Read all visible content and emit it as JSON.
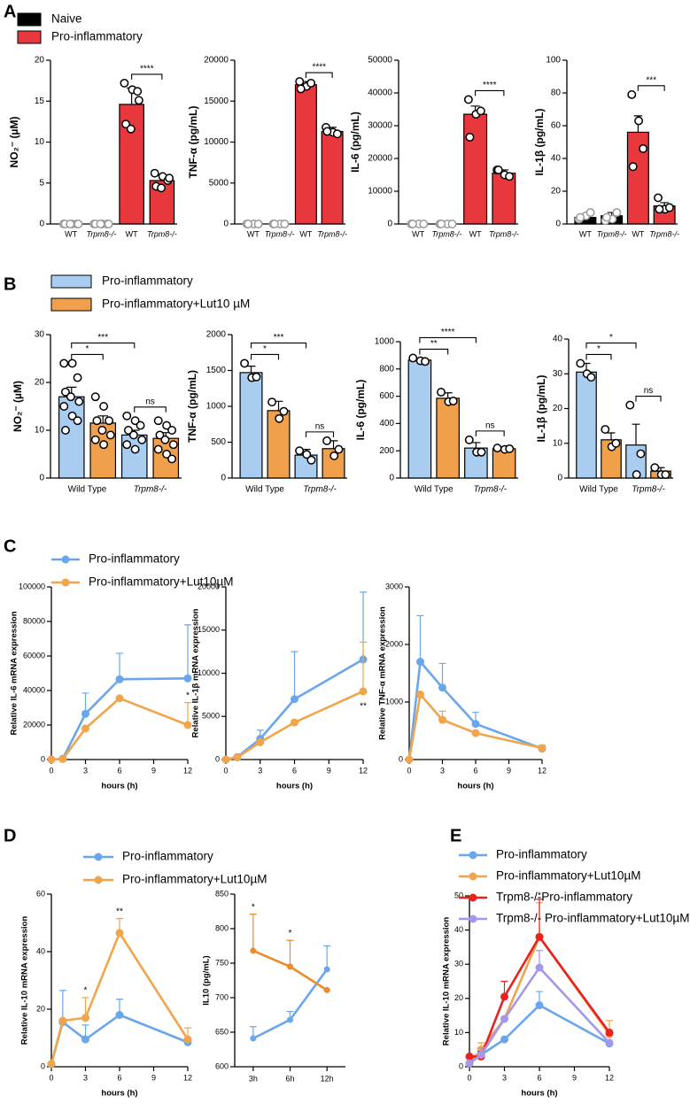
{
  "panel_labels": [
    "A",
    "B",
    "C",
    "D",
    "E"
  ],
  "chart_data": [
    {
      "type": "bar",
      "ylabel": "NO₂⁻ (µM)",
      "categories": [
        "WT",
        "Trpm8-/-"
      ],
      "series": [
        {
          "name": "Naive",
          "color": "#000000",
          "values": [
            0,
            0
          ],
          "errors": [
            0,
            0
          ],
          "points": [
            [
              0,
              0,
              0,
              0,
              0,
              0
            ],
            [
              0,
              0,
              0,
              0,
              0,
              0
            ]
          ]
        },
        {
          "name": "Pro-inflammatory",
          "color": "#e8383d",
          "values": [
            14.6,
            5.3
          ],
          "errors": [
            2.0,
            0.6
          ],
          "points": [
            [
              17.2,
              16.4,
              16.2,
              12.2,
              11.6,
              15.1
            ],
            [
              6.2,
              5.8,
              5.3,
              4.6,
              4.4,
              5.6
            ]
          ]
        }
      ],
      "ylim": [
        0,
        20
      ],
      "yticks": [
        0,
        5,
        10,
        15,
        20
      ],
      "annotations": [
        "****"
      ]
    },
    {
      "type": "bar",
      "ylabel": "TNF-α (pg/mL)",
      "categories": [
        "WT",
        "Trpm8-/-"
      ],
      "series": [
        {
          "name": "Naive",
          "color": "#000000",
          "values": [
            0,
            0
          ],
          "errors": [
            0,
            0
          ],
          "points": [
            [
              0,
              0,
              0,
              0
            ],
            [
              0,
              0,
              0,
              0
            ]
          ]
        },
        {
          "name": "Pro-inflammatory",
          "color": "#e8383d",
          "values": [
            17000,
            11300
          ],
          "errors": [
            400,
            500
          ],
          "points": [
            [
              17400,
              16800,
              17200,
              16500
            ],
            [
              11800,
              11200,
              11000,
              11300
            ]
          ]
        }
      ],
      "ylim": [
        0,
        20000
      ],
      "yticks": [
        0,
        5000,
        10000,
        15000,
        20000
      ],
      "annotations": [
        "****"
      ]
    },
    {
      "type": "bar",
      "ylabel": "IL-6 (pg/mL)",
      "categories": [
        "WT",
        "Trpm8-/-"
      ],
      "series": [
        {
          "name": "Naive",
          "color": "#000000",
          "values": [
            0,
            0
          ],
          "errors": [
            0,
            0
          ],
          "points": [
            [
              0,
              0,
              0,
              0
            ],
            [
              0,
              0,
              0,
              0
            ]
          ]
        },
        {
          "name": "Pro-inflammatory",
          "color": "#e8383d",
          "values": [
            33500,
            15500
          ],
          "errors": [
            2500,
            1000
          ],
          "points": [
            [
              38000,
              33500,
              34500,
              26500
            ],
            [
              16500,
              15000,
              14500,
              16500
            ]
          ]
        }
      ],
      "ylim": [
        0,
        50000
      ],
      "yticks": [
        0,
        10000,
        20000,
        30000,
        40000,
        50000
      ],
      "annotations": [
        "****"
      ]
    },
    {
      "type": "bar",
      "ylabel": "IL-1β (pg/mL)",
      "categories": [
        "WT",
        "Trpm8-/-"
      ],
      "series": [
        {
          "name": "Naive",
          "color": "#000000",
          "values": [
            4,
            5
          ],
          "errors": [
            1,
            2
          ],
          "points": [
            [
              3,
              5,
              7,
              4
            ],
            [
              2,
              3,
              7,
              4
            ]
          ]
        },
        {
          "name": "Pro-inflammatory",
          "color": "#e8383d",
          "values": [
            56,
            11
          ],
          "errors": [
            10,
            2
          ],
          "points": [
            [
              79,
              63,
              46,
              35
            ],
            [
              16,
              9,
              10,
              9
            ]
          ]
        }
      ],
      "ylim": [
        0,
        100
      ],
      "yticks": [
        0,
        20,
        40,
        60,
        80,
        100
      ],
      "annotations": [
        "***"
      ]
    },
    {
      "type": "bar",
      "ylabel": "NO₂⁻ (µM)",
      "categories": [
        "Wild Type",
        "Trpm8-/-"
      ],
      "series": [
        {
          "name": "Pro-inflammatory",
          "color": "#a9cdf0",
          "values": [
            17,
            9
          ],
          "errors": [
            2,
            1
          ],
          "points": [
            [
              24,
              24,
              21,
              18,
              17,
              16,
              15,
              13,
              12,
              10
            ],
            [
              13,
              12,
              11,
              10,
              9,
              8,
              7,
              6
            ]
          ]
        },
        {
          "name": "Pro-inflammatory+Lut10 µM",
          "color": "#f0a04b",
          "values": [
            11.5,
            8.3
          ],
          "errors": [
            1.5,
            1.2
          ],
          "points": [
            [
              17,
              15,
              12,
              12,
              10,
              9,
              8,
              7
            ],
            [
              12,
              11,
              10,
              9,
              8,
              7,
              6,
              5,
              4
            ]
          ]
        }
      ],
      "ylim": [
        0,
        30
      ],
      "yticks": [
        0,
        10,
        20,
        30
      ],
      "annotations": [
        "*",
        "***",
        "ns"
      ]
    },
    {
      "type": "bar",
      "ylabel": "TNF-α (pg/mL)",
      "categories": [
        "Wild Type",
        "Trpm8-/-"
      ],
      "series": [
        {
          "name": "Pro-inflammatory",
          "color": "#a9cdf0",
          "values": [
            1470,
            320
          ],
          "errors": [
            90,
            80
          ],
          "points": [
            [
              1600,
              1400,
              1410
            ],
            [
              380,
              330,
              250
            ]
          ]
        },
        {
          "name": "Pro-inflammatory+Lut10 µM",
          "color": "#f0a04b",
          "values": [
            940,
            410
          ],
          "errors": [
            130,
            110
          ],
          "points": [
            [
              1060,
              830,
              930
            ],
            [
              520,
              310,
              400
            ]
          ]
        }
      ],
      "ylim": [
        0,
        2000
      ],
      "yticks": [
        0,
        500,
        1000,
        1500,
        2000
      ],
      "annotations": [
        "*",
        "***",
        "ns"
      ]
    },
    {
      "type": "bar",
      "ylabel": "IL-6 (pg/mL)",
      "categories": [
        "Wild Type",
        "Trpm8-/-"
      ],
      "series": [
        {
          "name": "Pro-inflammatory",
          "color": "#a9cdf0",
          "values": [
            865,
            220
          ],
          "errors": [
            10,
            40
          ],
          "points": [
            [
              880,
              860,
              855
            ],
            [
              280,
              190,
              190
            ]
          ]
        },
        {
          "name": "Pro-inflammatory+Lut10 µM",
          "color": "#f0a04b",
          "values": [
            585,
            215
          ],
          "errors": [
            40,
            10
          ],
          "points": [
            [
              630,
              560,
              565
            ],
            [
              220,
              210,
              215
            ]
          ]
        }
      ],
      "ylim": [
        0,
        1000
      ],
      "yticks": [
        0,
        200,
        400,
        600,
        800,
        1000
      ],
      "annotations": [
        "**",
        "****",
        "ns"
      ]
    },
    {
      "type": "bar",
      "ylabel": "IL-1β (pg/mL)",
      "categories": [
        "Wild Type",
        "Trpm8-/-"
      ],
      "series": [
        {
          "name": "Pro-inflammatory",
          "color": "#a9cdf0",
          "values": [
            30.5,
            9.5
          ],
          "errors": [
            2.5,
            6
          ],
          "points": [
            [
              33,
              30,
              29
            ],
            [
              21,
              1,
              7
            ]
          ]
        },
        {
          "name": "Pro-inflammatory+Lut10 µM",
          "color": "#f0a04b",
          "values": [
            11,
            2
          ],
          "errors": [
            2,
            1
          ],
          "points": [
            [
              14,
              9,
              10
            ],
            [
              3,
              1,
              1
            ]
          ]
        }
      ],
      "ylim": [
        0,
        40
      ],
      "yticks": [
        0,
        10,
        20,
        30,
        40
      ],
      "annotations": [
        "*",
        "*",
        "ns"
      ]
    },
    {
      "type": "line",
      "ylabel": "Relative IL-6 mRNA expression",
      "xlabel": "hours (h)",
      "x": [
        0,
        1,
        3,
        6,
        12
      ],
      "xlim": [
        0,
        12
      ],
      "xticks": [
        0,
        3,
        6,
        9,
        12
      ],
      "series": [
        {
          "name": "Pro-inflammatory",
          "color": "#6aa6ec",
          "values": [
            0,
            500,
            26500,
            46500,
            47000
          ],
          "errors": [
            0,
            0,
            12000,
            15000,
            31000
          ]
        },
        {
          "name": "Pro-inflammatory+Lut10µM",
          "color": "#f0a54d",
          "values": [
            0,
            300,
            18000,
            35500,
            20000
          ],
          "errors": [
            0,
            0,
            0,
            0,
            13000
          ]
        }
      ],
      "ylim": [
        0,
        100000
      ],
      "yticks": [
        0,
        20000,
        40000,
        60000,
        80000,
        100000
      ],
      "annotations": [
        "*"
      ]
    },
    {
      "type": "line",
      "ylabel": "Relative IL-1β mRNA expression",
      "xlabel": "hours (h)",
      "x": [
        0,
        1,
        3,
        6,
        12
      ],
      "xlim": [
        0,
        12
      ],
      "xticks": [
        0,
        3,
        6,
        9,
        12
      ],
      "series": [
        {
          "name": "Pro-inflammatory",
          "color": "#6aa6ec",
          "values": [
            0,
            300,
            2400,
            7000,
            11600
          ],
          "errors": [
            0,
            0,
            1000,
            5500,
            7800
          ]
        },
        {
          "name": "Pro-inflammatory+Lut10µM",
          "color": "#f0a54d",
          "values": [
            0,
            250,
            2000,
            4300,
            7900
          ],
          "errors": [
            0,
            0,
            0,
            0,
            5700
          ]
        }
      ],
      "ylim": [
        0,
        20000
      ],
      "yticks": [
        0,
        5000,
        10000,
        15000,
        20000
      ],
      "annotations": [
        "**"
      ]
    },
    {
      "type": "line",
      "ylabel": "Relative TNF-α mRNA expression",
      "xlabel": "hours (h)",
      "x": [
        0,
        1,
        3,
        6,
        12
      ],
      "xlim": [
        0,
        12
      ],
      "xticks": [
        0,
        3,
        6,
        9,
        12
      ],
      "series": [
        {
          "name": "Pro-inflammatory",
          "color": "#6aa6ec",
          "values": [
            0,
            1700,
            1250,
            620,
            190
          ],
          "errors": [
            0,
            800,
            420,
            200,
            0
          ]
        },
        {
          "name": "Pro-inflammatory+Lut10µM",
          "color": "#f0a54d",
          "values": [
            0,
            1130,
            690,
            460,
            200
          ],
          "errors": [
            0,
            0,
            150,
            0,
            50
          ]
        }
      ],
      "ylim": [
        0,
        3000
      ],
      "yticks": [
        0,
        1000,
        2000,
        3000
      ]
    },
    {
      "type": "line",
      "ylabel": "Relative IL-10 mRNA expression",
      "xlabel": "hours (h)",
      "x": [
        0,
        1,
        3,
        6,
        12
      ],
      "xlim": [
        0,
        12
      ],
      "xticks": [
        0,
        3,
        6,
        9,
        12
      ],
      "series": [
        {
          "name": "Pro-inflammatory",
          "color": "#6aa6ec",
          "values": [
            1,
            15.5,
            9.5,
            18,
            8.5
          ],
          "errors": [
            0,
            11,
            5,
            5.5,
            0
          ]
        },
        {
          "name": "Pro-inflammatory+Lut10µM",
          "color": "#f0a54d",
          "values": [
            1,
            16,
            17,
            46.5,
            9.5
          ],
          "errors": [
            0,
            0,
            7,
            5,
            4
          ]
        }
      ],
      "ylim": [
        0,
        60
      ],
      "yticks": [
        0,
        20,
        40,
        60
      ],
      "annotations": [
        "*",
        "**"
      ]
    },
    {
      "type": "line",
      "ylabel": "IL10 (pg/mL)",
      "categories": [
        "3h",
        "6h",
        "12h"
      ],
      "series": [
        {
          "name": "Pro-inflammatory",
          "color": "#6aa6ec",
          "values": [
            641,
            668,
            741
          ],
          "errors": [
            17,
            12,
            34
          ]
        },
        {
          "name": "Pro-inflammatory+Lut10µM",
          "color": "#ec8a2c",
          "values": [
            768,
            745,
            711
          ],
          "errors": [
            53,
            38,
            0
          ]
        }
      ],
      "ylim": [
        600,
        850
      ],
      "yticks": [
        600,
        650,
        700,
        750,
        800,
        850
      ],
      "annotations": [
        "*",
        "*"
      ]
    },
    {
      "type": "line",
      "ylabel": "Relative IL-10 mRNA expression",
      "xlabel": "hours (h)",
      "x": [
        0,
        1,
        3,
        6,
        12
      ],
      "xlim": [
        0,
        12
      ],
      "xticks": [
        0,
        3,
        6,
        9,
        12
      ],
      "series": [
        {
          "name": "Pro-inflammatory",
          "color": "#6aa6ec",
          "values": [
            1,
            3.5,
            8,
            18,
            6.8
          ],
          "errors": [
            0,
            0,
            0,
            4,
            0
          ]
        },
        {
          "name": "Pro-inflammatory+Lut10µM",
          "color": "#f0a54d",
          "values": [
            1,
            5,
            14,
            38,
            9.5
          ],
          "errors": [
            0,
            2,
            0,
            10,
            4
          ]
        },
        {
          "name": "Trpm8-/-Pro-inflammatory",
          "color": "#e8231f",
          "values": [
            3,
            3,
            20.5,
            38,
            10
          ],
          "errors": [
            0,
            1.5,
            4.5,
            11,
            0
          ]
        },
        {
          "name": "Trpm8-/- Pro-inflammatory+Lut10µM",
          "color": "#a497ee",
          "values": [
            1,
            3.5,
            14,
            29,
            7
          ],
          "errors": [
            0,
            2,
            0,
            5,
            0
          ]
        }
      ],
      "ylim": [
        0,
        50
      ],
      "yticks": [
        0,
        10,
        20,
        30,
        40,
        50
      ],
      "annotations": [
        "*"
      ]
    }
  ]
}
